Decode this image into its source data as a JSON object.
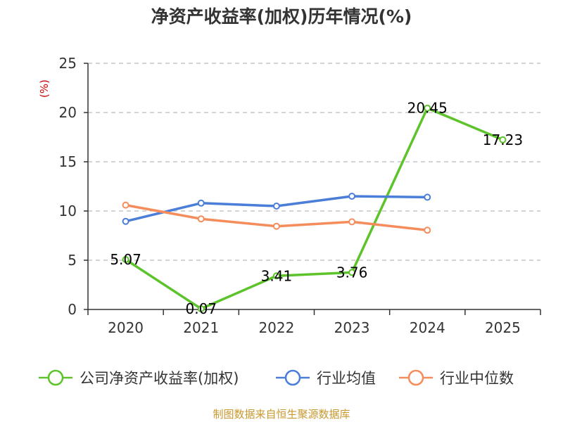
{
  "chart_data": {
    "type": "line",
    "title": "净资产收益率(加权)历年情况(%)",
    "ylabel": "(%)",
    "xlabel": "",
    "categories": [
      "2020",
      "2021",
      "2022",
      "2023",
      "2024",
      "2025"
    ],
    "ylim": [
      0,
      25
    ],
    "yticks": [
      "0",
      "5",
      "10",
      "15",
      "20",
      "25"
    ],
    "grid": true,
    "legend_position": "bottom",
    "series": [
      {
        "name": "公司净资产收益率(加权)",
        "color": "#5cc32a",
        "values": [
          5.07,
          0.07,
          3.41,
          3.76,
          20.45,
          17.23
        ],
        "labels": [
          "5.07",
          "0.07",
          "3.41",
          "3.76",
          "20.45",
          "17.23"
        ]
      },
      {
        "name": "行业均值",
        "color": "#4a7ed8",
        "values": [
          8.95,
          10.8,
          10.5,
          11.5,
          11.4,
          null
        ]
      },
      {
        "name": "行业中位数",
        "color": "#f48d5b",
        "values": [
          10.6,
          9.2,
          8.45,
          8.9,
          8.05,
          null
        ]
      }
    ]
  },
  "source": "制图数据来自恒生聚源数据库",
  "colors": {
    "ylabel": "#cc0000",
    "source": "#c8982e",
    "axis": "#333333",
    "grid": "#bbbbbb"
  }
}
